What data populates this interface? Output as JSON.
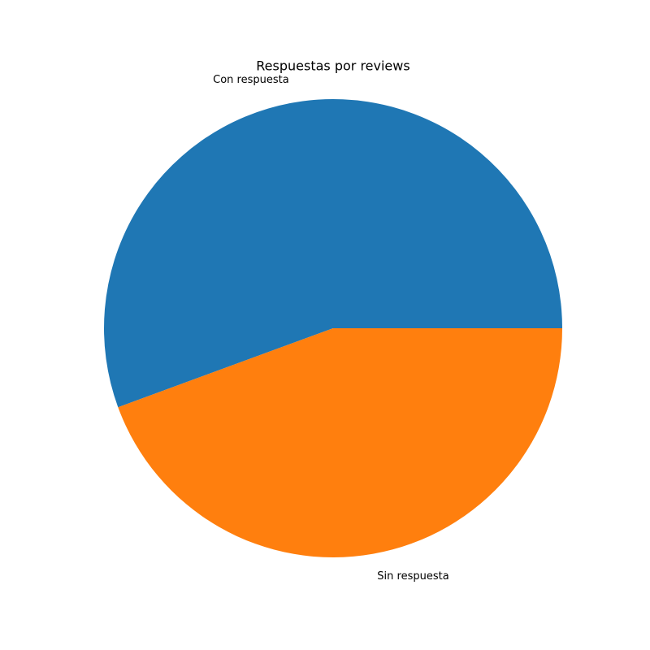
{
  "chart_data": {
    "type": "pie",
    "title": "Respuestas por reviews",
    "categories": [
      "Con respuesta",
      "Sin respuesta"
    ],
    "values": [
      55.6,
      44.4
    ],
    "colors": [
      "#1f77b4",
      "#ff7f0e"
    ]
  }
}
